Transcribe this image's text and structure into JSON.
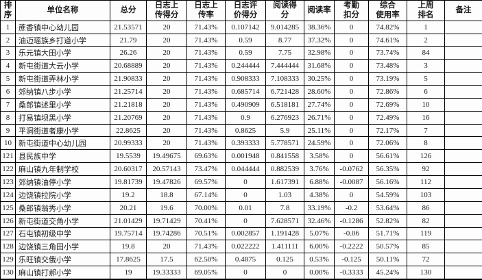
{
  "table": {
    "columns": [
      {
        "key": "rank",
        "label": "排\n序"
      },
      {
        "key": "unit_name",
        "label": "单位名称"
      },
      {
        "key": "total_score",
        "label": "总分"
      },
      {
        "key": "log_upload_score",
        "label": "日志上\n传得分"
      },
      {
        "key": "log_upload_rate",
        "label": "日志上\n传率"
      },
      {
        "key": "log_eval_score",
        "label": "日志评\n价得分"
      },
      {
        "key": "reading_score",
        "label": "阅读得\n分"
      },
      {
        "key": "reading_rate",
        "label": "阅读率"
      },
      {
        "key": "attendance_deduction",
        "label": "考勤\n扣分"
      },
      {
        "key": "overall_usage_rate",
        "label": "综合\n使用率"
      },
      {
        "key": "last_week_rank",
        "label": "上周\n排名"
      },
      {
        "key": "remark",
        "label": "备注"
      }
    ],
    "rows": [
      {
        "rank": "1",
        "unit_name": "蔗香镇中心幼儿园",
        "total_score": "21.53571",
        "log_upload_score": "20",
        "log_upload_rate": "71.43%",
        "log_eval_score": "0.107142",
        "reading_score": "9.014285",
        "reading_rate": "38.36%",
        "attendance_deduction": "0",
        "overall_usage_rate": "74.82%",
        "last_week_rank": "1",
        "remark": ""
      },
      {
        "rank": "2",
        "unit_name": "油迈瑶族乡打道小学",
        "total_score": "21.79",
        "log_upload_score": "20",
        "log_upload_rate": "71.43%",
        "log_eval_score": "0.59",
        "reading_score": "8.77",
        "reading_rate": "37.32%",
        "attendance_deduction": "0",
        "overall_usage_rate": "74.61%",
        "last_week_rank": "2",
        "remark": ""
      },
      {
        "rank": "3",
        "unit_name": "乐元镇大田小学",
        "total_score": "26.26",
        "log_upload_score": "20",
        "log_upload_rate": "71.43%",
        "log_eval_score": "0.59",
        "reading_score": "7.75",
        "reading_rate": "32.98%",
        "attendance_deduction": "0",
        "overall_usage_rate": "73.74%",
        "last_week_rank": "84",
        "remark": ""
      },
      {
        "rank": "4",
        "unit_name": "新屯街道大云小学",
        "total_score": "20.68889",
        "log_upload_score": "20",
        "log_upload_rate": "71.43%",
        "log_eval_score": "0.244444",
        "reading_score": "7.444444",
        "reading_rate": "31.68%",
        "attendance_deduction": "0",
        "overall_usage_rate": "73.48%",
        "last_week_rank": "3",
        "remark": ""
      },
      {
        "rank": "5",
        "unit_name": "新屯街道弄林小学",
        "total_score": "21.90833",
        "log_upload_score": "20",
        "log_upload_rate": "71.43%",
        "log_eval_score": "0.908333",
        "reading_score": "7.108333",
        "reading_rate": "30.25%",
        "attendance_deduction": "0",
        "overall_usage_rate": "73.19%",
        "last_week_rank": "5",
        "remark": ""
      },
      {
        "rank": "6",
        "unit_name": "郊纳镇八步小学",
        "total_score": "21.25714",
        "log_upload_score": "20",
        "log_upload_rate": "71.43%",
        "log_eval_score": "0.685714",
        "reading_score": "6.721428",
        "reading_rate": "28.60%",
        "attendance_deduction": "0",
        "overall_usage_rate": "72.86%",
        "last_week_rank": "6",
        "remark": ""
      },
      {
        "rank": "7",
        "unit_name": "桑郎镇述里小学",
        "total_score": "21.21818",
        "log_upload_score": "20",
        "log_upload_rate": "71.43%",
        "log_eval_score": "0.490909",
        "reading_score": "6.518181",
        "reading_rate": "27.74%",
        "attendance_deduction": "0",
        "overall_usage_rate": "72.69%",
        "last_week_rank": "10",
        "remark": ""
      },
      {
        "rank": "8",
        "unit_name": "打易镇坝黑小学",
        "total_score": "21.20769",
        "log_upload_score": "20",
        "log_upload_rate": "71.43%",
        "log_eval_score": "0.9",
        "reading_score": "6.276923",
        "reading_rate": "26.71%",
        "attendance_deduction": "0",
        "overall_usage_rate": "72.49%",
        "last_week_rank": "16",
        "remark": ""
      },
      {
        "rank": "9",
        "unit_name": "平洞街道者康小学",
        "total_score": "22.8625",
        "log_upload_score": "20",
        "log_upload_rate": "71.43%",
        "log_eval_score": "0.8625",
        "reading_score": "5.9",
        "reading_rate": "25.11%",
        "attendance_deduction": "0",
        "overall_usage_rate": "72.17%",
        "last_week_rank": "7",
        "remark": ""
      },
      {
        "rank": "10",
        "unit_name": "新屯街道中心幼儿园",
        "total_score": "20.99333",
        "log_upload_score": "20",
        "log_upload_rate": "71.43%",
        "log_eval_score": "0.393333",
        "reading_score": "5.778571",
        "reading_rate": "24.59%",
        "attendance_deduction": "0",
        "overall_usage_rate": "72.06%",
        "last_week_rank": "8",
        "remark": ""
      },
      {
        "rank": "121",
        "unit_name": "县民族中学",
        "total_score": "19.5539",
        "log_upload_score": "19.49675",
        "log_upload_rate": "69.63%",
        "log_eval_score": "0.001948",
        "reading_score": "0.841558",
        "reading_rate": "3.58%",
        "attendance_deduction": "0",
        "overall_usage_rate": "56.61%",
        "last_week_rank": "126",
        "remark": ""
      },
      {
        "rank": "122",
        "unit_name": "麻山镇九年制学校",
        "total_score": "20.60317",
        "log_upload_score": "20.57143",
        "log_upload_rate": "73.47%",
        "log_eval_score": "0.044444",
        "reading_score": "0.882539",
        "reading_rate": "3.76%",
        "attendance_deduction": "-0.0762",
        "overall_usage_rate": "56.35%",
        "last_week_rank": "92",
        "remark": ""
      },
      {
        "rank": "123",
        "unit_name": "郊纳镇油停小学",
        "total_score": "19.81739",
        "log_upload_score": "19.47826",
        "log_upload_rate": "69.57%",
        "log_eval_score": "0",
        "reading_score": "1.617391",
        "reading_rate": "6.88%",
        "attendance_deduction": "-0.0087",
        "overall_usage_rate": "56.16%",
        "last_week_rank": "112",
        "remark": ""
      },
      {
        "rank": "124",
        "unit_name": "边饶镇拉院小学",
        "total_score": "19.2",
        "log_upload_score": "18.8",
        "log_upload_rate": "67.14%",
        "log_eval_score": "0",
        "reading_score": "1.03",
        "reading_rate": "4.38%",
        "attendance_deduction": "0",
        "overall_usage_rate": "54.59%",
        "last_week_rank": "103",
        "remark": ""
      },
      {
        "rank": "125",
        "unit_name": "桑郎镇翁秀小学",
        "total_score": "20.21",
        "log_upload_score": "19.6",
        "log_upload_rate": "70.00%",
        "log_eval_score": "0.01",
        "reading_score": "7.8",
        "reading_rate": "33.19%",
        "attendance_deduction": "-0.2",
        "overall_usage_rate": "53.64%",
        "last_week_rank": "86",
        "remark": ""
      },
      {
        "rank": "126",
        "unit_name": "新屯街道交角小学",
        "total_score": "21.01429",
        "log_upload_score": "19.71429",
        "log_upload_rate": "70.41%",
        "log_eval_score": "0",
        "reading_score": "7.628571",
        "reading_rate": "32.46%",
        "attendance_deduction": "-0.1286",
        "overall_usage_rate": "52.82%",
        "last_week_rank": "82",
        "remark": ""
      },
      {
        "rank": "127",
        "unit_name": "石屯镇初级中学",
        "total_score": "19.75714",
        "log_upload_score": "19.74286",
        "log_upload_rate": "70.51%",
        "log_eval_score": "0.002857",
        "reading_score": "1.191428",
        "reading_rate": "5.07%",
        "attendance_deduction": "-0.06",
        "overall_usage_rate": "51.71%",
        "last_week_rank": "119",
        "remark": ""
      },
      {
        "rank": "128",
        "unit_name": "边饶镇三角田小学",
        "total_score": "19.8",
        "log_upload_score": "20",
        "log_upload_rate": "71.43%",
        "log_eval_score": "0.022222",
        "reading_score": "1.411111",
        "reading_rate": "6.00%",
        "attendance_deduction": "-0.2222",
        "overall_usage_rate": "50.57%",
        "last_week_rank": "85",
        "remark": ""
      },
      {
        "rank": "129",
        "unit_name": "乐旺镇交俄小学",
        "total_score": "17.8625",
        "log_upload_score": "17.5",
        "log_upload_rate": "62.50%",
        "log_eval_score": "0.4875",
        "reading_score": "0.125",
        "reading_rate": "0.53%",
        "attendance_deduction": "-0.125",
        "overall_usage_rate": "50.11%",
        "last_week_rank": "72",
        "remark": ""
      },
      {
        "rank": "130",
        "unit_name": "麻山镇打郝小学",
        "total_score": "19",
        "log_upload_score": "19.33333",
        "log_upload_rate": "69.05%",
        "log_eval_score": "0",
        "reading_score": "0",
        "reading_rate": "0.00%",
        "attendance_deduction": "-0.3333",
        "overall_usage_rate": "45.24%",
        "last_week_rank": "130",
        "remark": ""
      }
    ]
  }
}
